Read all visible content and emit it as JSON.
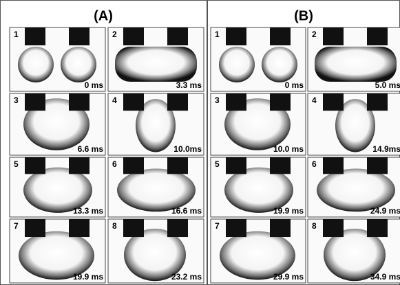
{
  "panels": [
    {
      "label": "(A)",
      "frames": [
        {
          "index": "1",
          "time": "0 ms"
        },
        {
          "index": "2",
          "time": "3.3 ms"
        },
        {
          "index": "3",
          "time": "6.6 ms"
        },
        {
          "index": "4",
          "time": "10.0ms"
        },
        {
          "index": "5",
          "time": "13.3 ms"
        },
        {
          "index": "6",
          "time": "16.6 ms"
        },
        {
          "index": "7",
          "time": "19.9 ms"
        },
        {
          "index": "8",
          "time": "23.2 ms"
        }
      ]
    },
    {
      "label": "(B)",
      "frames": [
        {
          "index": "1",
          "time": "0 ms"
        },
        {
          "index": "2",
          "time": "5.0 ms"
        },
        {
          "index": "3",
          "time": "10.0 ms"
        },
        {
          "index": "4",
          "time": "14.9ms"
        },
        {
          "index": "5",
          "time": "19.9 ms"
        },
        {
          "index": "6",
          "time": "24.9 ms"
        },
        {
          "index": "7",
          "time": "29.9 ms"
        },
        {
          "index": "8",
          "time": "34.9 ms"
        }
      ]
    }
  ]
}
